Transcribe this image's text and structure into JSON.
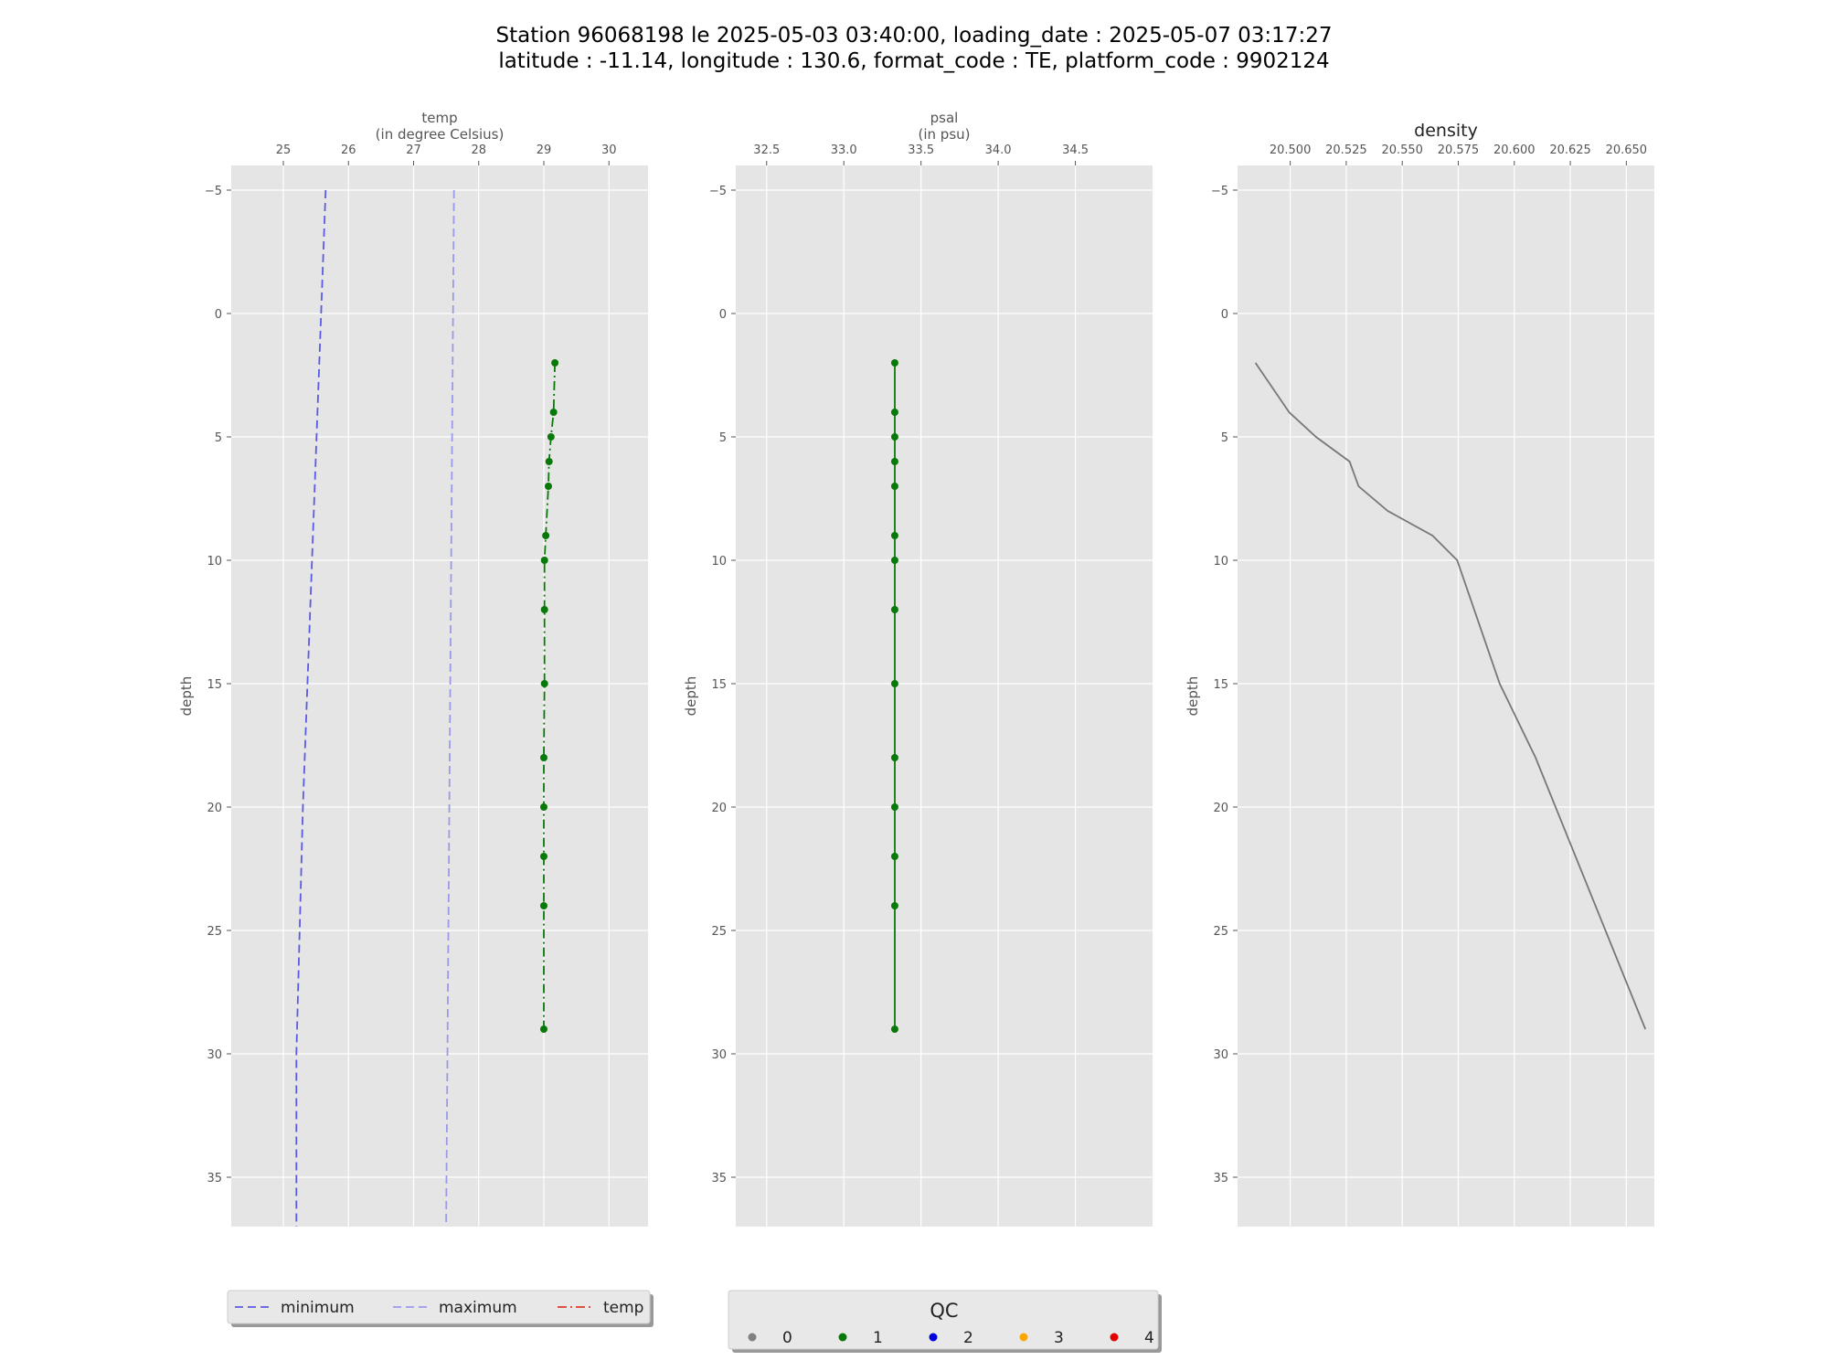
{
  "figure": {
    "title_line1": "Station 96068198 le 2025-05-03 03:40:00, loading_date : 2025-05-07 03:17:27",
    "title_line2": "latitude : -11.14, longitude : 130.6, format_code : TE, platform_code : 9902124"
  },
  "colors": {
    "panel_bg": "#e5e5e5",
    "grid": "#ffffff",
    "minimum": "#5a5ae6",
    "maximum": "#9a9ae8",
    "temp_legend": "#e0392b",
    "qc1": "#087908",
    "density": "#777777"
  },
  "chart_data": [
    {
      "type": "line",
      "panel": "temp",
      "xlabel_line1": "temp",
      "xlabel_line2": "(in degree Celsius)",
      "ylabel": "depth",
      "xlim": [
        24.2,
        30.6
      ],
      "ylim": [
        37,
        -6
      ],
      "y_inverted": true,
      "xticks": [
        25,
        26,
        27,
        28,
        29,
        30
      ],
      "xtick_labels": [
        "25",
        "26",
        "27",
        "28",
        "29",
        "30"
      ],
      "yticks": [
        -5,
        0,
        5,
        10,
        15,
        20,
        25,
        30,
        35
      ],
      "ytick_labels": [
        "−5",
        "0",
        "5",
        "10",
        "15",
        "20",
        "25",
        "30",
        "35"
      ],
      "grid": true,
      "series": [
        {
          "name": "minimum",
          "style": "dashed",
          "color_key": "minimum",
          "x": [
            25.65,
            25.3,
            25.2,
            25.2
          ],
          "y": [
            -5,
            20,
            30,
            37
          ]
        },
        {
          "name": "maximum",
          "style": "dashed",
          "color_key": "maximum",
          "x": [
            27.62,
            27.5
          ],
          "y": [
            -5,
            37
          ]
        },
        {
          "name": "temp",
          "style": "dashdot",
          "color_key": "qc1",
          "markers": true,
          "x": [
            29.17,
            29.15,
            29.11,
            29.08,
            29.07,
            29.03,
            29.01,
            29.01,
            29.01,
            29.0,
            29.0,
            29.0,
            29.0,
            29.0
          ],
          "y": [
            2,
            4,
            5,
            6,
            7,
            9,
            10,
            12,
            15,
            18,
            20,
            22,
            24,
            29
          ]
        }
      ]
    },
    {
      "type": "line",
      "panel": "psal",
      "xlabel_line1": "psal",
      "xlabel_line2": "(in psu)",
      "ylabel": "depth",
      "xlim": [
        32.3,
        35.0
      ],
      "ylim": [
        37,
        -6
      ],
      "y_inverted": true,
      "xticks": [
        32.5,
        33.0,
        33.5,
        34.0,
        34.5
      ],
      "xtick_labels": [
        "32.5",
        "33.0",
        "33.5",
        "34.0",
        "34.5"
      ],
      "yticks": [
        -5,
        0,
        5,
        10,
        15,
        20,
        25,
        30,
        35
      ],
      "ytick_labels": [
        "−5",
        "0",
        "5",
        "10",
        "15",
        "20",
        "25",
        "30",
        "35"
      ],
      "grid": true,
      "series": [
        {
          "name": "psal",
          "style": "solid",
          "color_key": "qc1",
          "markers": true,
          "x": [
            33.33,
            33.33,
            33.33,
            33.33,
            33.33,
            33.33,
            33.33,
            33.33,
            33.33,
            33.33,
            33.33,
            33.33,
            33.33,
            33.33
          ],
          "y": [
            2,
            4,
            5,
            6,
            7,
            9,
            10,
            12,
            15,
            18,
            20,
            22,
            24,
            29
          ]
        }
      ]
    },
    {
      "type": "line",
      "panel": "density",
      "title": "density",
      "ylabel": "depth",
      "xlim": [
        20.4765,
        20.6625
      ],
      "ylim": [
        37,
        -6
      ],
      "y_inverted": true,
      "xticks": [
        20.5,
        20.525,
        20.55,
        20.575,
        20.6,
        20.625,
        20.65
      ],
      "xtick_labels": [
        "20.500",
        "20.525",
        "20.550",
        "20.575",
        "20.600",
        "20.625",
        "20.650"
      ],
      "yticks": [
        -5,
        0,
        5,
        10,
        15,
        20,
        25,
        30,
        35
      ],
      "ytick_labels": [
        "−5",
        "0",
        "5",
        "10",
        "15",
        "20",
        "25",
        "30",
        "35"
      ],
      "grid": true,
      "series": [
        {
          "name": "density",
          "style": "solid",
          "color_key": "density",
          "markers": false,
          "x": [
            20.4845,
            20.4995,
            20.5115,
            20.5265,
            20.5305,
            20.5435,
            20.5635,
            20.5745,
            20.5935,
            20.6095,
            20.6585
          ],
          "y": [
            2,
            4,
            5,
            6,
            7,
            8,
            9,
            10,
            15,
            18,
            29
          ]
        }
      ]
    }
  ],
  "legend_lines": {
    "items": [
      {
        "label": "minimum",
        "style": "dashed",
        "color_key": "minimum"
      },
      {
        "label": "maximum",
        "style": "dashed",
        "color_key": "maximum"
      },
      {
        "label": "temp",
        "style": "dashdot",
        "color_key": "temp_legend"
      }
    ]
  },
  "legend_qc": {
    "title": "QC",
    "items": [
      {
        "label": "0",
        "color": "#808080"
      },
      {
        "label": "1",
        "color": "#087908"
      },
      {
        "label": "2",
        "color": "#0000e0"
      },
      {
        "label": "3",
        "color": "#ffa500"
      },
      {
        "label": "4",
        "color": "#e00000"
      }
    ]
  }
}
